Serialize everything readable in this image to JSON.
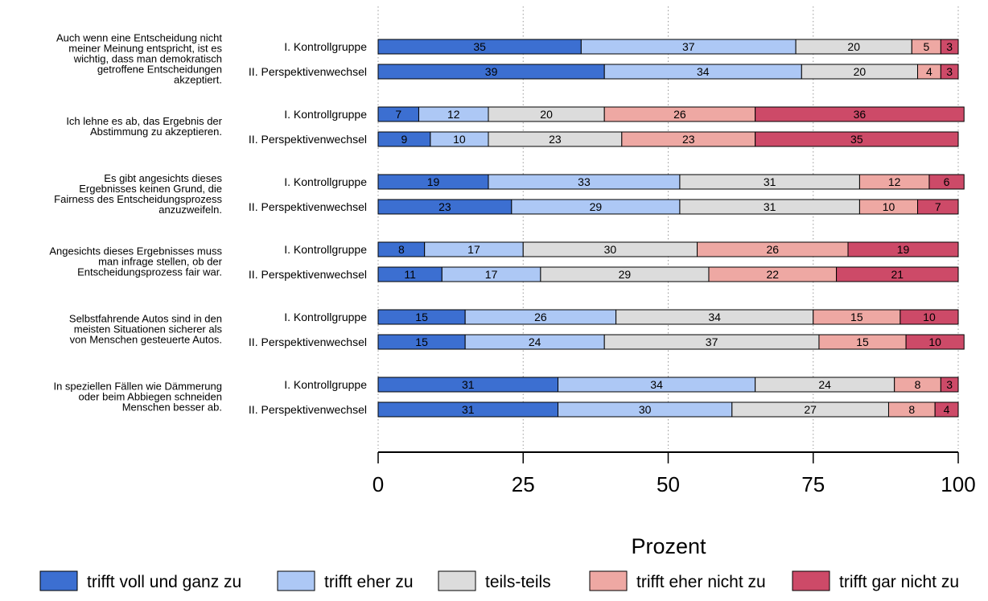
{
  "chart_data": {
    "type": "bar",
    "orientation": "horizontal-stacked-100",
    "xlabel": "Prozent",
    "xlim": [
      0,
      100
    ],
    "xticks": [
      "0",
      "25",
      "50",
      "75",
      "100"
    ],
    "grid": "vertical dotted",
    "legend_position": "bottom",
    "categories": [
      {
        "name": "trifft voll und ganz zu",
        "color": "#3c6fd1"
      },
      {
        "name": "trifft eher zu",
        "color": "#adc8f5"
      },
      {
        "name": "teils-teils",
        "color": "#dcdcdc"
      },
      {
        "name": "trifft eher nicht zu",
        "color": "#eea8a3"
      },
      {
        "name": "trifft gar nicht zu",
        "color": "#cd4a68"
      }
    ],
    "items": [
      {
        "question": [
          "Auch wenn eine Entscheidung nicht",
          "meiner Meinung entspricht, ist es",
          "wichtig, dass man demokratisch",
          "getroffene Entscheidungen",
          "akzeptiert."
        ],
        "groups": [
          {
            "name": "I. Kontrollgruppe",
            "values": [
              35,
              37,
              20,
              5,
              3
            ]
          },
          {
            "name": "II. Perspektivenwechsel",
            "values": [
              39,
              34,
              20,
              4,
              3
            ]
          }
        ]
      },
      {
        "question": [
          "Ich lehne es ab, das Ergebnis der",
          "Abstimmung zu akzeptieren."
        ],
        "groups": [
          {
            "name": "I. Kontrollgruppe",
            "values": [
              7,
              12,
              20,
              26,
              36
            ]
          },
          {
            "name": "II. Perspektivenwechsel",
            "values": [
              9,
              10,
              23,
              23,
              35
            ]
          }
        ]
      },
      {
        "question": [
          "Es gibt angesichts dieses",
          "Ergebnisses keinen Grund, die",
          "Fairness des Entscheidungsprozess",
          "anzuzweifeln."
        ],
        "groups": [
          {
            "name": "I. Kontrollgruppe",
            "values": [
              19,
              33,
              31,
              12,
              6
            ]
          },
          {
            "name": "II. Perspektivenwechsel",
            "values": [
              23,
              29,
              31,
              10,
              7
            ]
          }
        ]
      },
      {
        "question": [
          "Angesichts dieses Ergebnisses muss",
          "man infrage stellen, ob der",
          "Entscheidungsprozess fair war."
        ],
        "groups": [
          {
            "name": "I. Kontrollgruppe",
            "values": [
              8,
              17,
              30,
              26,
              19
            ]
          },
          {
            "name": "II. Perspektivenwechsel",
            "values": [
              11,
              17,
              29,
              22,
              21
            ]
          }
        ]
      },
      {
        "question": [
          "Selbstfahrende Autos sind in den",
          "meisten Situationen sicherer als",
          "von Menschen gesteuerte Autos."
        ],
        "groups": [
          {
            "name": "I. Kontrollgruppe",
            "values": [
              15,
              26,
              34,
              15,
              10
            ]
          },
          {
            "name": "II. Perspektivenwechsel",
            "values": [
              15,
              24,
              37,
              15,
              10
            ]
          }
        ]
      },
      {
        "question": [
          "In speziellen Fällen wie Dämmerung",
          "oder beim Abbiegen schneiden",
          "Menschen besser ab."
        ],
        "groups": [
          {
            "name": "I. Kontrollgruppe",
            "values": [
              31,
              34,
              24,
              8,
              3
            ]
          },
          {
            "name": "II. Perspektivenwechsel",
            "values": [
              31,
              30,
              27,
              8,
              4
            ]
          }
        ]
      }
    ]
  }
}
